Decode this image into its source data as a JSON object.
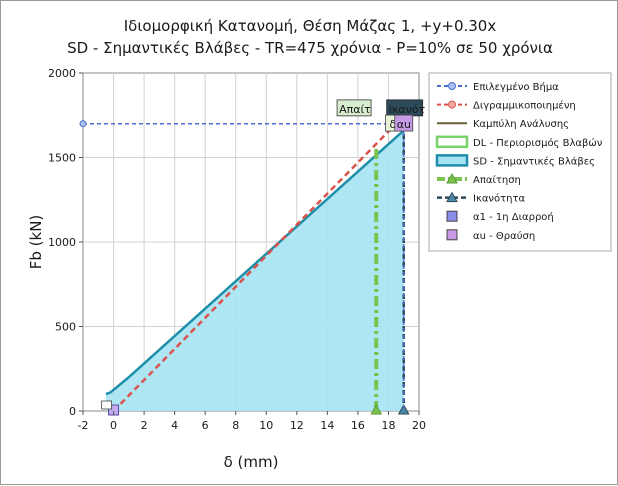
{
  "chart_data": {
    "type": "line",
    "title": "Ιδιομορφική Κατανομή, Θέση Μάζας 1, +y+0.30x",
    "subtitle": "SD - Σημαντικές Βλάβες - TR=475 χρόνια - P=10% σε 50 χρόνια",
    "xlabel": "δ (mm)",
    "ylabel": "Fb (kN)",
    "xlim": [
      -2,
      20
    ],
    "ylim": [
      0,
      2000
    ],
    "xticks": [
      "-2",
      "0",
      "2",
      "4",
      "6",
      "8",
      "10",
      "12",
      "14",
      "16",
      "18",
      "20"
    ],
    "yticks": [
      "0",
      "500",
      "1000",
      "1500",
      "2000"
    ],
    "grid": true,
    "legend_position": "right",
    "series": [
      {
        "name": "Επιλεγμένο Βήμα",
        "style": "dashed-circle",
        "color": "#4a6fd0",
        "x": [
          -2,
          19,
          19
        ],
        "y": [
          1700,
          1700,
          0
        ]
      },
      {
        "name": "Διγραμμικοποιημένη",
        "style": "dashed-circle",
        "color": "#d9534a",
        "x": [
          0,
          18.5,
          19
        ],
        "y": [
          0,
          1700,
          1720
        ]
      },
      {
        "name": "Καμπύλη Ανάλυσης",
        "style": "line",
        "color": "#6b5c3a",
        "x": [
          -0.5,
          -0.2,
          1,
          19
        ],
        "y": [
          100,
          110,
          200,
          1660
        ]
      },
      {
        "name": "DL - Περιορισμός Βλαβών",
        "style": "band",
        "color": "#7bd26a"
      },
      {
        "name": "SD - Σημαντικές Βλάβες",
        "style": "band",
        "color": "#a6e3f3",
        "x": [
          -0.5,
          -0.2,
          1,
          19
        ],
        "y": [
          100,
          110,
          200,
          1660
        ]
      },
      {
        "name": "Απαίτηση",
        "style": "dashdot-triangle",
        "color": "#7cc24e",
        "x": [
          17.2,
          17.2
        ],
        "y": [
          0,
          1560
        ]
      },
      {
        "name": "Ικανότητα",
        "style": "dashed-triangle",
        "color": "#2c4a5a",
        "x": [
          19,
          19
        ],
        "y": [
          0,
          1700
        ]
      },
      {
        "name": "α1 - 1η Διαρροή",
        "style": "square",
        "color": "#8a8ee8",
        "x": [
          0
        ],
        "y": [
          0
        ]
      },
      {
        "name": "αu - Θραύση",
        "style": "square",
        "color": "#c79ae6",
        "x": [
          19
        ],
        "y": [
          1700
        ]
      }
    ],
    "annotations": [
      {
        "text": "Απαίτ",
        "x": 16.6,
        "y": 1770
      },
      {
        "text": "Ικανότ",
        "x": 18.8,
        "y": 1770
      },
      {
        "text": "δ",
        "x": 18.2,
        "y": 1680
      },
      {
        "text": "αu",
        "x": 19,
        "y": 1680
      }
    ]
  }
}
